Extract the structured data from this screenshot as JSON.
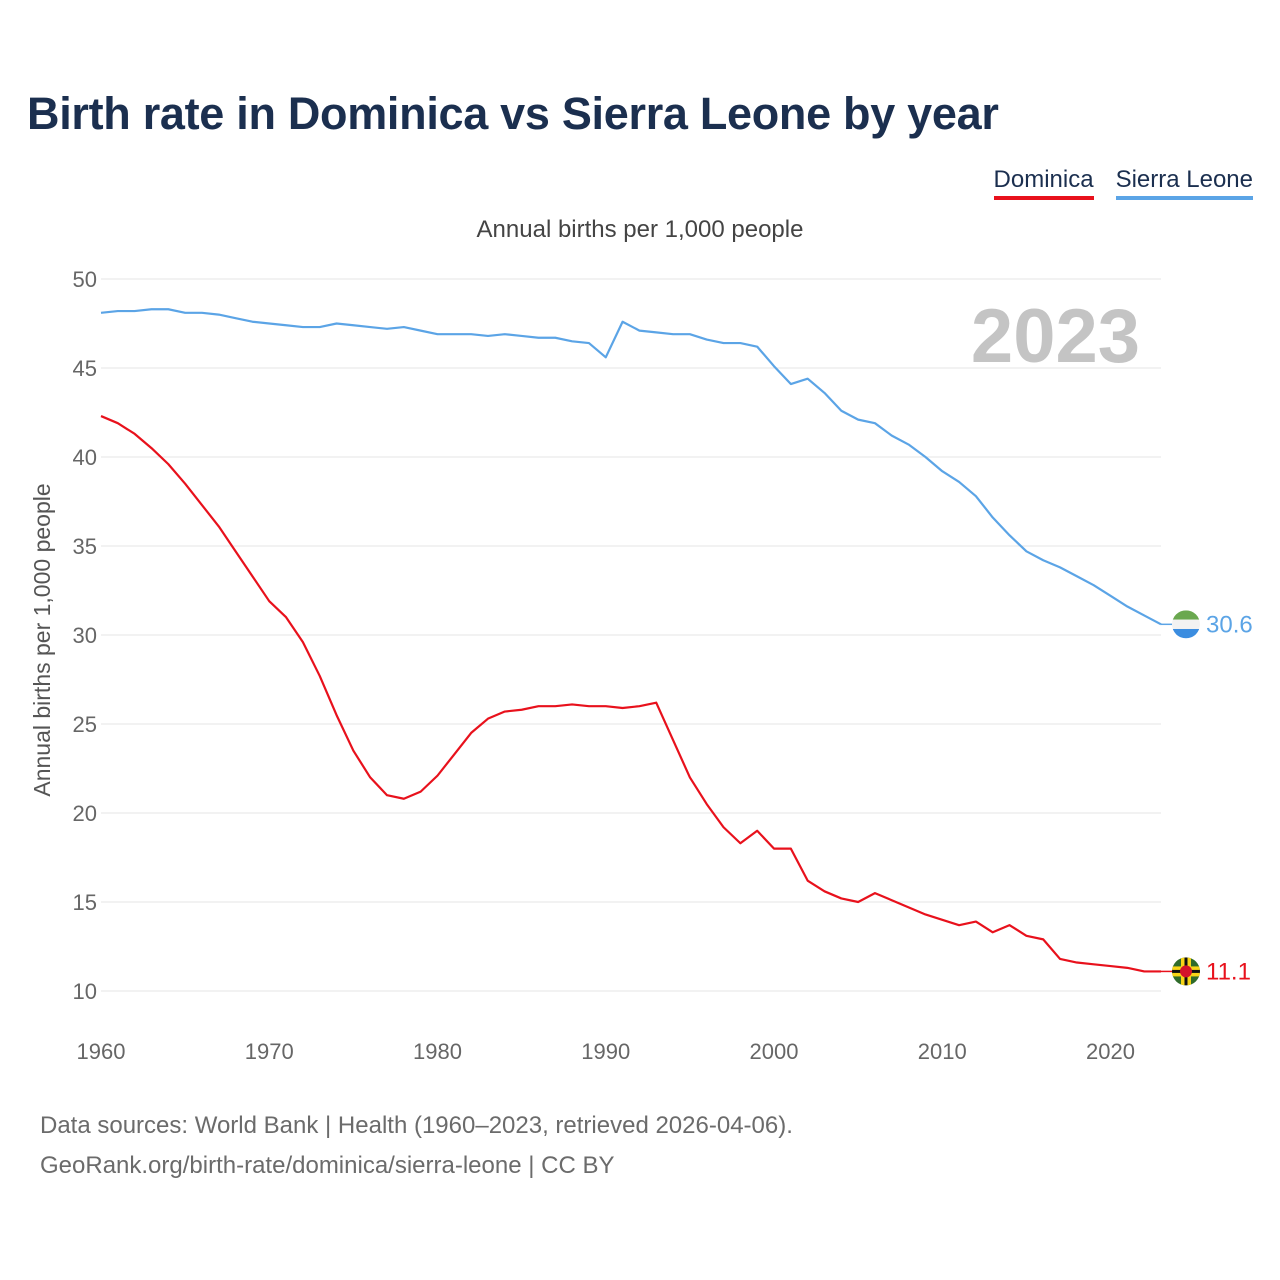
{
  "title": "Birth rate in Dominica vs Sierra Leone by year",
  "subtitle": "Annual births per 1,000 people",
  "legend": {
    "dominica": "Dominica",
    "sierra_leone": "Sierra Leone"
  },
  "colors": {
    "dominica": "#e8111c",
    "sierra_leone": "#5ba4e6",
    "title": "#1b2f4f"
  },
  "year_watermark": "2023",
  "footer": {
    "line1": "Data sources: World Bank | Health (1960–2023, retrieved 2026-04-06).",
    "line2": "GeoRank.org/birth-rate/dominica/sierra-leone | CC BY"
  },
  "chart_data": {
    "type": "line",
    "title": "Birth rate in Dominica vs Sierra Leone by year",
    "ylabel": "Annual births per 1,000 people",
    "xlabel": "",
    "xlim": [
      1960,
      2023
    ],
    "ylim": [
      10,
      50
    ],
    "xticks": [
      1960,
      1970,
      1980,
      1990,
      2000,
      2010,
      2020
    ],
    "yticks": [
      10,
      15,
      20,
      25,
      30,
      35,
      40,
      45,
      50
    ],
    "grid": true,
    "x": [
      1960,
      1961,
      1962,
      1963,
      1964,
      1965,
      1966,
      1967,
      1968,
      1969,
      1970,
      1971,
      1972,
      1973,
      1974,
      1975,
      1976,
      1977,
      1978,
      1979,
      1980,
      1981,
      1982,
      1983,
      1984,
      1985,
      1986,
      1987,
      1988,
      1989,
      1990,
      1991,
      1992,
      1993,
      1994,
      1995,
      1996,
      1997,
      1998,
      1999,
      2000,
      2001,
      2002,
      2003,
      2004,
      2005,
      2006,
      2007,
      2008,
      2009,
      2010,
      2011,
      2012,
      2013,
      2014,
      2015,
      2016,
      2017,
      2018,
      2019,
      2020,
      2021,
      2022,
      2023
    ],
    "series": [
      {
        "name": "Dominica",
        "color": "#e8111c",
        "end_label": "11.1",
        "values": [
          42.3,
          41.9,
          41.3,
          40.5,
          39.6,
          38.5,
          37.3,
          36.1,
          34.7,
          33.3,
          31.9,
          31.0,
          29.6,
          27.7,
          25.5,
          23.5,
          22.0,
          21.0,
          20.8,
          21.2,
          22.1,
          23.3,
          24.5,
          25.3,
          25.7,
          25.8,
          26.0,
          26.0,
          26.1,
          26.0,
          26.0,
          25.9,
          26.0,
          26.2,
          24.1,
          22.0,
          20.5,
          19.2,
          18.3,
          19.0,
          18.0,
          18.0,
          16.2,
          15.6,
          15.2,
          15.0,
          15.5,
          15.1,
          14.7,
          14.3,
          14.0,
          13.7,
          13.9,
          13.3,
          13.7,
          13.1,
          12.9,
          11.8,
          11.6,
          11.5,
          11.4,
          11.3,
          11.1,
          11.1
        ]
      },
      {
        "name": "Sierra Leone",
        "color": "#5ba4e6",
        "end_label": "30.6",
        "values": [
          48.1,
          48.2,
          48.2,
          48.3,
          48.3,
          48.1,
          48.1,
          48.0,
          47.8,
          47.6,
          47.5,
          47.4,
          47.3,
          47.3,
          47.5,
          47.4,
          47.3,
          47.2,
          47.3,
          47.1,
          46.9,
          46.9,
          46.9,
          46.8,
          46.9,
          46.8,
          46.7,
          46.7,
          46.5,
          46.4,
          45.6,
          47.6,
          47.1,
          47.0,
          46.9,
          46.9,
          46.6,
          46.4,
          46.4,
          46.2,
          45.1,
          44.1,
          44.4,
          43.6,
          42.6,
          42.1,
          41.9,
          41.2,
          40.7,
          40.0,
          39.2,
          38.6,
          37.8,
          36.6,
          35.6,
          34.7,
          34.2,
          33.8,
          33.3,
          32.8,
          32.2,
          31.6,
          31.1,
          30.6
        ]
      }
    ]
  }
}
